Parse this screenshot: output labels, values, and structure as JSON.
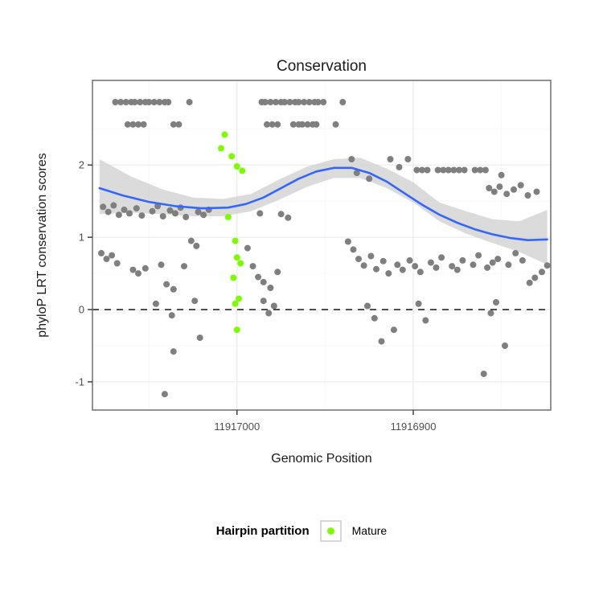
{
  "chart_data": {
    "type": "scatter",
    "title": "Conservation",
    "xlabel": "Genomic Position",
    "ylabel": "phyloP LRT conservation scores",
    "colors": {
      "other": "#7f7f7f",
      "mature": "#7CFC00",
      "smooth_line": "#3366FF",
      "ribbon": "#cfcfcf",
      "panel_border": "#777777",
      "grid_major": "#ebebeb",
      "grid_minor": "#f7f7f7",
      "reference_line": "#000000",
      "tick_label": "#4d4d4d",
      "text": "#1a1a1a"
    },
    "x_axis": {
      "reversed": true,
      "domain_left": 11917082,
      "domain_right": 11916822,
      "ticks": [
        {
          "value": 11917000,
          "label": "11917000"
        },
        {
          "value": 11916900,
          "label": "11916900"
        }
      ],
      "minor": [
        11917050,
        11916950,
        11916850
      ]
    },
    "y_axis": {
      "min": -1.39,
      "max": 3.17,
      "ticks": [
        -1,
        0,
        1,
        2
      ],
      "minor": [
        -0.5,
        0.5,
        1.5,
        2.5
      ]
    },
    "reference_line_y": 0,
    "legend": {
      "title": "Hairpin partition",
      "entries": [
        {
          "label": "Mature",
          "color": "#7CFC00"
        }
      ]
    },
    "smooth": {
      "points": [
        [
          11917078,
          1.68
        ],
        [
          11917065,
          1.58
        ],
        [
          11917050,
          1.49
        ],
        [
          11917035,
          1.43
        ],
        [
          11917020,
          1.4
        ],
        [
          11917005,
          1.41
        ],
        [
          11916995,
          1.46
        ],
        [
          11916985,
          1.55
        ],
        [
          11916975,
          1.68
        ],
        [
          11916965,
          1.81
        ],
        [
          11916955,
          1.91
        ],
        [
          11916945,
          1.96
        ],
        [
          11916935,
          1.96
        ],
        [
          11916925,
          1.89
        ],
        [
          11916915,
          1.77
        ],
        [
          11916905,
          1.61
        ],
        [
          11916895,
          1.45
        ],
        [
          11916885,
          1.31
        ],
        [
          11916875,
          1.2
        ],
        [
          11916865,
          1.11
        ],
        [
          11916855,
          1.04
        ],
        [
          11916845,
          0.99
        ],
        [
          11916835,
          0.96
        ],
        [
          11916824,
          0.97
        ]
      ]
    },
    "ribbon": [
      [
        11917078,
        1.32,
        2.08
      ],
      [
        11917060,
        1.34,
        1.84
      ],
      [
        11917042,
        1.32,
        1.66
      ],
      [
        11917025,
        1.29,
        1.55
      ],
      [
        11917008,
        1.29,
        1.53
      ],
      [
        11916992,
        1.36,
        1.6
      ],
      [
        11916976,
        1.52,
        1.8
      ],
      [
        11916960,
        1.7,
        1.98
      ],
      [
        11916945,
        1.82,
        2.08
      ],
      [
        11916930,
        1.82,
        2.1
      ],
      [
        11916915,
        1.68,
        1.95
      ],
      [
        11916900,
        1.48,
        1.76
      ],
      [
        11916885,
        1.22,
        1.48
      ],
      [
        11916870,
        1.05,
        1.36
      ],
      [
        11916855,
        0.92,
        1.25
      ],
      [
        11916840,
        0.8,
        1.22
      ],
      [
        11916824,
        0.62,
        1.38
      ]
    ],
    "series": [
      {
        "name": "Other",
        "color": "#7f7f7f",
        "points": [
          [
            11917069,
            2.87
          ],
          [
            11917066,
            2.87
          ],
          [
            11917063,
            2.87
          ],
          [
            11917060,
            2.87
          ],
          [
            11917058,
            2.87
          ],
          [
            11917055,
            2.87
          ],
          [
            11917052,
            2.87
          ],
          [
            11917050,
            2.87
          ],
          [
            11917047,
            2.87
          ],
          [
            11917044,
            2.87
          ],
          [
            11917041,
            2.87
          ],
          [
            11917039,
            2.87
          ],
          [
            11917027,
            2.87
          ],
          [
            11916986,
            2.87
          ],
          [
            11916984,
            2.87
          ],
          [
            11916981,
            2.87
          ],
          [
            11916978,
            2.87
          ],
          [
            11916975,
            2.87
          ],
          [
            11916973,
            2.87
          ],
          [
            11916970,
            2.87
          ],
          [
            11916967,
            2.87
          ],
          [
            11916965,
            2.87
          ],
          [
            11916962,
            2.87
          ],
          [
            11916959,
            2.87
          ],
          [
            11916956,
            2.87
          ],
          [
            11916954,
            2.87
          ],
          [
            11916951,
            2.87
          ],
          [
            11916940,
            2.87
          ],
          [
            11917062,
            2.56
          ],
          [
            11917059,
            2.56
          ],
          [
            11917056,
            2.56
          ],
          [
            11917053,
            2.56
          ],
          [
            11917036,
            2.56
          ],
          [
            11917033,
            2.56
          ],
          [
            11916983,
            2.56
          ],
          [
            11916980,
            2.56
          ],
          [
            11916977,
            2.56
          ],
          [
            11916968,
            2.56
          ],
          [
            11916965,
            2.56
          ],
          [
            11916963,
            2.56
          ],
          [
            11916960,
            2.56
          ],
          [
            11916957,
            2.56
          ],
          [
            11916955,
            2.56
          ],
          [
            11916944,
            2.56
          ],
          [
            11916935,
            2.08
          ],
          [
            11916932,
            1.89
          ],
          [
            11916925,
            1.81
          ],
          [
            11916913,
            2.08
          ],
          [
            11916908,
            1.97
          ],
          [
            11916903,
            2.08
          ],
          [
            11916898,
            1.93
          ],
          [
            11916895,
            1.93
          ],
          [
            11916892,
            1.93
          ],
          [
            11916886,
            1.93
          ],
          [
            11916883,
            1.93
          ],
          [
            11916880,
            1.93
          ],
          [
            11916877,
            1.93
          ],
          [
            11916874,
            1.93
          ],
          [
            11916871,
            1.93
          ],
          [
            11916865,
            1.93
          ],
          [
            11916862,
            1.93
          ],
          [
            11916859,
            1.93
          ],
          [
            11916850,
            1.86
          ],
          [
            11916857,
            1.68
          ],
          [
            11916854,
            1.63
          ],
          [
            11916851,
            1.7
          ],
          [
            11916847,
            1.6
          ],
          [
            11916843,
            1.66
          ],
          [
            11916839,
            1.72
          ],
          [
            11916835,
            1.58
          ],
          [
            11916830,
            1.63
          ],
          [
            11917076,
            1.42
          ],
          [
            11917073,
            1.35
          ],
          [
            11917070,
            1.44
          ],
          [
            11917067,
            1.31
          ],
          [
            11917064,
            1.38
          ],
          [
            11917061,
            1.33
          ],
          [
            11917057,
            1.4
          ],
          [
            11917054,
            1.3
          ],
          [
            11917048,
            1.36
          ],
          [
            11917045,
            1.43
          ],
          [
            11917042,
            1.29
          ],
          [
            11917038,
            1.37
          ],
          [
            11917035,
            1.33
          ],
          [
            11917032,
            1.41
          ],
          [
            11917029,
            1.28
          ],
          [
            11917022,
            1.35
          ],
          [
            11917019,
            1.31
          ],
          [
            11917016,
            1.38
          ],
          [
            11916987,
            1.33
          ],
          [
            11916975,
            1.32
          ],
          [
            11916971,
            1.27
          ],
          [
            11917077,
            0.78
          ],
          [
            11917074,
            0.7
          ],
          [
            11917071,
            0.75
          ],
          [
            11917068,
            0.64
          ],
          [
            11917059,
            0.55
          ],
          [
            11917056,
            0.5
          ],
          [
            11917052,
            0.57
          ],
          [
            11917043,
            0.62
          ],
          [
            11917040,
            0.35
          ],
          [
            11917036,
            0.28
          ],
          [
            11917030,
            0.6
          ],
          [
            11917026,
            0.95
          ],
          [
            11917023,
            0.88
          ],
          [
            11916994,
            0.85
          ],
          [
            11916991,
            0.6
          ],
          [
            11916988,
            0.45
          ],
          [
            11916985,
            0.38
          ],
          [
            11916981,
            0.3
          ],
          [
            11916977,
            0.52
          ],
          [
            11916937,
            0.94
          ],
          [
            11916934,
            0.83
          ],
          [
            11916931,
            0.7
          ],
          [
            11916928,
            0.61
          ],
          [
            11916924,
            0.74
          ],
          [
            11916921,
            0.56
          ],
          [
            11916917,
            0.67
          ],
          [
            11916914,
            0.5
          ],
          [
            11916909,
            0.62
          ],
          [
            11916906,
            0.55
          ],
          [
            11916902,
            0.68
          ],
          [
            11916899,
            0.6
          ],
          [
            11916896,
            0.52
          ],
          [
            11916890,
            0.65
          ],
          [
            11916887,
            0.58
          ],
          [
            11916884,
            0.72
          ],
          [
            11916878,
            0.6
          ],
          [
            11916875,
            0.55
          ],
          [
            11916872,
            0.68
          ],
          [
            11916866,
            0.62
          ],
          [
            11916863,
            0.75
          ],
          [
            11916858,
            0.58
          ],
          [
            11916855,
            0.65
          ],
          [
            11916852,
            0.7
          ],
          [
            11916846,
            0.62
          ],
          [
            11916842,
            0.78
          ],
          [
            11916838,
            0.68
          ],
          [
            11916834,
            0.37
          ],
          [
            11916831,
            0.44
          ],
          [
            11916827,
            0.52
          ],
          [
            11916824,
            0.61
          ],
          [
            11917046,
            0.08
          ],
          [
            11917037,
            -0.08
          ],
          [
            11917036,
            -0.58
          ],
          [
            11917041,
            -1.17
          ],
          [
            11917021,
            -0.39
          ],
          [
            11917024,
            0.12
          ],
          [
            11916985,
            0.12
          ],
          [
            11916982,
            -0.05
          ],
          [
            11916979,
            0.05
          ],
          [
            11916926,
            0.05
          ],
          [
            11916922,
            -0.12
          ],
          [
            11916918,
            -0.44
          ],
          [
            11916911,
            -0.28
          ],
          [
            11916897,
            0.08
          ],
          [
            11916893,
            -0.15
          ],
          [
            11916856,
            -0.05
          ],
          [
            11916853,
            0.1
          ],
          [
            11916848,
            -0.5
          ],
          [
            11916860,
            -0.89
          ]
        ]
      },
      {
        "name": "Mature",
        "color": "#7CFC00",
        "points": [
          [
            11917007,
            2.42
          ],
          [
            11917009,
            2.23
          ],
          [
            11917003,
            2.12
          ],
          [
            11917000,
            1.98
          ],
          [
            11916997,
            1.92
          ],
          [
            11917005,
            1.28
          ],
          [
            11917001,
            0.95
          ],
          [
            11917000,
            0.72
          ],
          [
            11916998,
            0.64
          ],
          [
            11917002,
            0.44
          ],
          [
            11916999,
            0.15
          ],
          [
            11917001,
            0.08
          ],
          [
            11917000,
            -0.28
          ]
        ]
      }
    ]
  }
}
